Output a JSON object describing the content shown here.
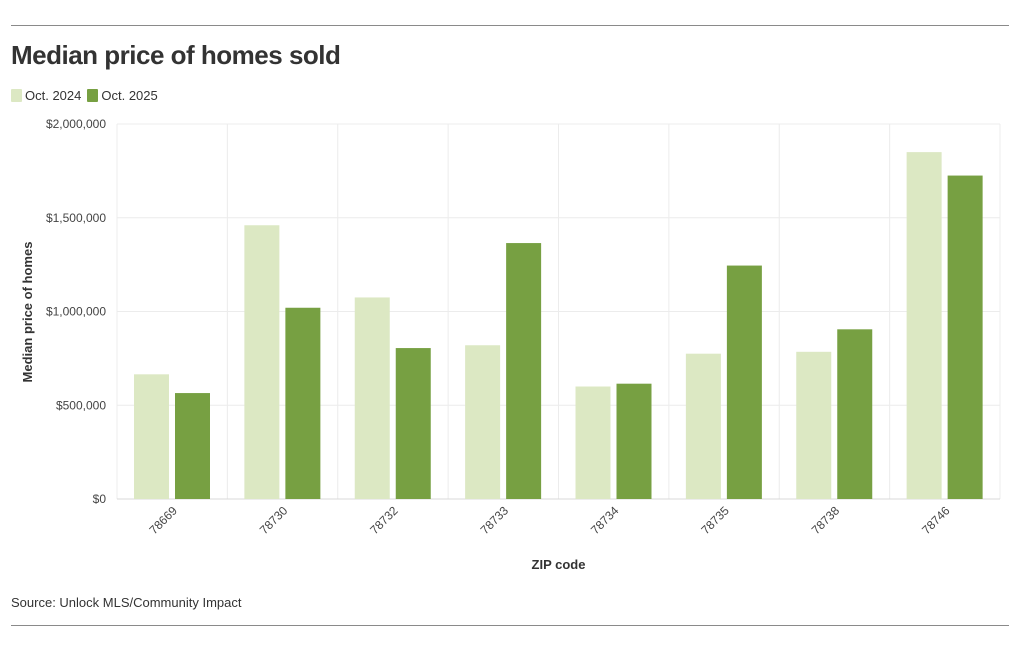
{
  "header": {
    "title": "Median price of homes sold"
  },
  "legend": {
    "items": [
      {
        "label": "Oct. 2024",
        "color": "#dce8c3"
      },
      {
        "label": "Oct. 2025",
        "color": "#77a042"
      }
    ]
  },
  "chart_data": {
    "type": "bar",
    "title": "Median price of homes sold",
    "xlabel": "ZIP code",
    "ylabel": "Median price of homes",
    "ylim": [
      0,
      2000000
    ],
    "yticks": [
      0,
      500000,
      1000000,
      1500000,
      2000000
    ],
    "ytick_labels": [
      "$0",
      "$500,000",
      "$1,000,000",
      "$1,500,000",
      "$2,000,000"
    ],
    "categories": [
      "78669",
      "78730",
      "78732",
      "78733",
      "78734",
      "78735",
      "78738",
      "78746"
    ],
    "series": [
      {
        "name": "Oct. 2024",
        "color": "#dce8c3",
        "values": [
          665000,
          1460000,
          1075000,
          820000,
          600000,
          775000,
          785000,
          1850000
        ]
      },
      {
        "name": "Oct. 2025",
        "color": "#77a042",
        "values": [
          565000,
          1020000,
          805000,
          1365000,
          615000,
          1245000,
          905000,
          1725000
        ]
      }
    ],
    "grid": true,
    "legend_position": "top-left"
  },
  "footer": {
    "source": "Source: Unlock MLS/Community Impact"
  }
}
